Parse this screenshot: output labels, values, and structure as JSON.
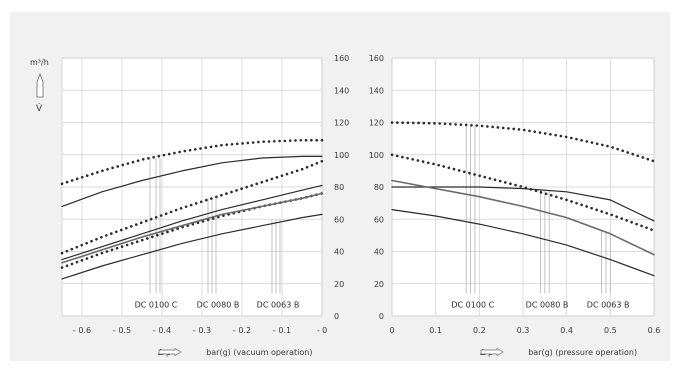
{
  "colors": {
    "background": "#f1f1f2",
    "plot_bg": "#ffffff",
    "grid": "#cfcfcf",
    "curve": "#2b2b2b",
    "curve_gray": "#6a6a6a"
  },
  "icons": {
    "up_arrow": "arrow-up-outline-icon",
    "right_arrow": "arrow-right-outline-icon"
  },
  "chart_data": [
    {
      "type": "line",
      "title": "",
      "unit_label": "m³/h",
      "y_symbol": "V̇",
      "xlabel_prefix": "Δ p",
      "xlabel": "bar(g) (vacuum operation)",
      "xlim": [
        -0.65,
        0
      ],
      "ylim": [
        0,
        160
      ],
      "x_ticks": [
        -0.6,
        -0.5,
        -0.4,
        -0.3,
        -0.2,
        -0.1,
        0
      ],
      "x_tick_labels": [
        "- 0.6",
        "- 0.5",
        "- 0.4",
        "- 0.3",
        "- 0.2",
        "- 0.1",
        "- 0"
      ],
      "y_ticks": [
        0,
        20,
        40,
        60,
        80,
        100,
        120,
        140,
        160
      ],
      "y_tick_labels": [
        "0",
        "20",
        "40",
        "60",
        "80",
        "100",
        "120",
        "140",
        "160"
      ],
      "y_axis_side": "right",
      "grid": true,
      "series": [
        {
          "style": "dotted",
          "x": [
            -0.65,
            -0.55,
            -0.45,
            -0.35,
            -0.25,
            -0.15,
            -0.05,
            0
          ],
          "y": [
            82,
            90,
            97,
            102,
            106,
            108,
            109,
            109
          ]
        },
        {
          "style": "solid",
          "x": [
            -0.65,
            -0.55,
            -0.45,
            -0.35,
            -0.25,
            -0.15,
            -0.05,
            0
          ],
          "y": [
            68,
            77,
            84,
            90,
            95,
            98,
            99,
            99
          ]
        },
        {
          "style": "dotted",
          "x": [
            -0.65,
            -0.55,
            -0.45,
            -0.35,
            -0.25,
            -0.15,
            -0.05,
            0
          ],
          "y": [
            39,
            49,
            58,
            67,
            75,
            83,
            91,
            96
          ]
        },
        {
          "style": "solid",
          "x": [
            -0.65,
            -0.55,
            -0.45,
            -0.35,
            -0.25,
            -0.15,
            -0.05,
            0
          ],
          "y": [
            35,
            43,
            51,
            59,
            66,
            72,
            78,
            81
          ]
        },
        {
          "style": "dotted",
          "x": [
            -0.65,
            -0.55,
            -0.45,
            -0.35,
            -0.25,
            -0.15,
            -0.05,
            0
          ],
          "y": [
            30,
            39,
            47,
            55,
            62,
            68,
            73,
            76
          ]
        },
        {
          "style": "solid-gray",
          "x": [
            -0.65,
            -0.55,
            -0.45,
            -0.35,
            -0.25,
            -0.15,
            -0.05,
            0
          ],
          "y": [
            33,
            41,
            49,
            56,
            63,
            68,
            73,
            76
          ]
        },
        {
          "style": "solid",
          "x": [
            -0.65,
            -0.55,
            -0.45,
            -0.35,
            -0.25,
            -0.15,
            -0.05,
            0
          ],
          "y": [
            23,
            31,
            38,
            45,
            51,
            56,
            61,
            63
          ]
        }
      ],
      "annotations": [
        {
          "text": "DC 0100 C",
          "x_center": -0.415,
          "drop_x": [
            -0.43,
            -0.415,
            -0.405
          ],
          "y_top": 98
        },
        {
          "text": "DC 0080 B",
          "x_center": -0.26,
          "drop_x": [
            -0.285,
            -0.275,
            -0.265
          ],
          "y_top": 73
        },
        {
          "text": "DC 0063 B",
          "x_center": -0.11,
          "drop_x": [
            -0.125,
            -0.115,
            -0.105
          ],
          "y_top": 60
        }
      ]
    },
    {
      "type": "line",
      "title": "",
      "xlabel_prefix": "Δ p",
      "xlabel": "bar(g) (pressure operation)",
      "xlim": [
        0,
        0.6
      ],
      "ylim": [
        0,
        160
      ],
      "x_ticks": [
        0,
        0.1,
        0.2,
        0.3,
        0.4,
        0.5,
        0.6
      ],
      "x_tick_labels": [
        "0",
        "0.1",
        "0.2",
        "0.3",
        "0.4",
        "0.5",
        "0.6"
      ],
      "y_ticks": [
        0,
        20,
        40,
        60,
        80,
        100,
        120,
        140,
        160
      ],
      "y_tick_labels": [
        "0",
        "20",
        "40",
        "60",
        "80",
        "100",
        "120",
        "140",
        "160"
      ],
      "y_axis_side": "left",
      "grid": true,
      "series": [
        {
          "style": "dotted",
          "x": [
            0,
            0.1,
            0.2,
            0.3,
            0.4,
            0.5,
            0.6
          ],
          "y": [
            120,
            119.5,
            118,
            115.5,
            111,
            105,
            96
          ]
        },
        {
          "style": "dotted",
          "x": [
            0,
            0.1,
            0.2,
            0.3,
            0.4,
            0.5,
            0.6
          ],
          "y": [
            100,
            94,
            87,
            80,
            72,
            63,
            53
          ]
        },
        {
          "style": "solid",
          "x": [
            0,
            0.1,
            0.2,
            0.3,
            0.4,
            0.5,
            0.6
          ],
          "y": [
            80,
            80,
            80,
            79,
            77,
            72,
            59
          ]
        },
        {
          "style": "solid-gray",
          "x": [
            0,
            0.1,
            0.2,
            0.3,
            0.4,
            0.5,
            0.6
          ],
          "y": [
            84,
            79,
            74,
            68,
            61,
            51,
            38
          ]
        },
        {
          "style": "solid",
          "x": [
            0,
            0.1,
            0.2,
            0.3,
            0.4,
            0.5,
            0.6
          ],
          "y": [
            66,
            62,
            57,
            51,
            44,
            35,
            25
          ]
        }
      ],
      "annotations": [
        {
          "text": "DC 0100 C",
          "x_center": 0.185,
          "drop_x": [
            0.17,
            0.18,
            0.19
          ],
          "y_top": 118
        },
        {
          "text": "DC 0080 B",
          "x_center": 0.355,
          "drop_x": [
            0.34,
            0.35,
            0.36
          ],
          "y_top": 78
        },
        {
          "text": "DC 0063 B",
          "x_center": 0.495,
          "drop_x": [
            0.48,
            0.49,
            0.5
          ],
          "y_top": 53
        }
      ]
    }
  ]
}
